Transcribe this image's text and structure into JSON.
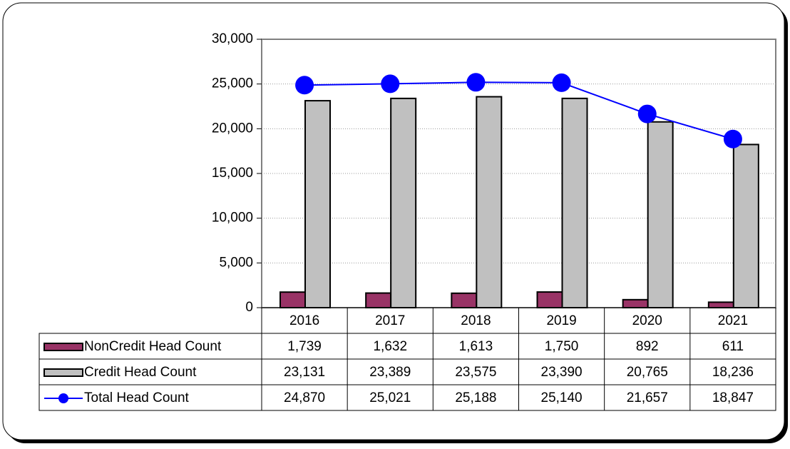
{
  "chart_data": {
    "type": "bar-line",
    "categories": [
      "2016",
      "2017",
      "2018",
      "2019",
      "2020",
      "2021"
    ],
    "series": [
      {
        "name": "NonCredit Head Count",
        "type": "bar",
        "color": "#993366",
        "values": [
          1739,
          1632,
          1613,
          1750,
          892,
          611
        ],
        "value_labels": [
          "1,739",
          "1,632",
          "1,613",
          "1,750",
          "892",
          "611"
        ]
      },
      {
        "name": "Credit Head Count",
        "type": "bar",
        "color": "#c0c0c0",
        "values": [
          23131,
          23389,
          23575,
          23390,
          20765,
          18236
        ],
        "value_labels": [
          "23,131",
          "23,389",
          "23,575",
          "23,390",
          "20,765",
          "18,236"
        ]
      },
      {
        "name": "Total Head Count",
        "type": "line",
        "color": "#0000ff",
        "values": [
          24870,
          25021,
          25188,
          25140,
          21657,
          18847
        ],
        "value_labels": [
          "24,870",
          "25,021",
          "25,188",
          "25,140",
          "21,657",
          "18,847"
        ]
      }
    ],
    "ylim": [
      0,
      30000
    ],
    "yticks": [
      0,
      {
        "value": 5000,
        "label": "5,000"
      },
      {
        "value": 10000,
        "label": "10,000"
      },
      {
        "value": 15000,
        "label": "15,000"
      },
      {
        "value": 20000,
        "label": "20,000"
      },
      {
        "value": 25000,
        "label": "25,000"
      },
      {
        "value": 30000,
        "label": "30,000"
      }
    ],
    "grid": true
  }
}
